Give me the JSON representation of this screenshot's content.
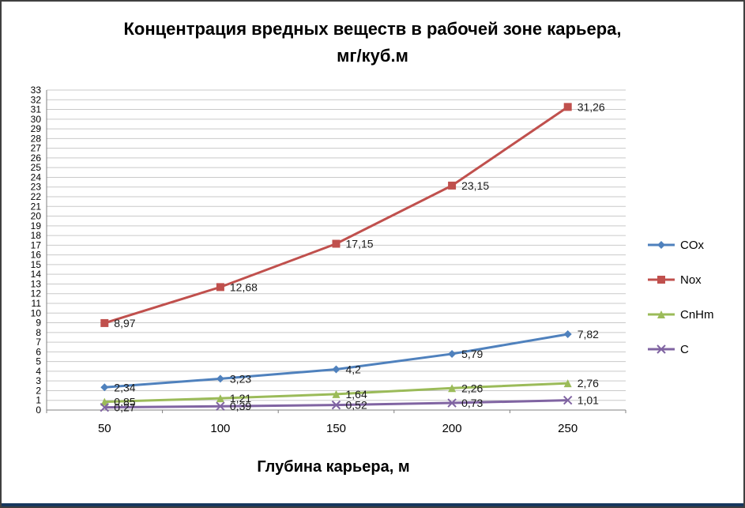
{
  "title_line1": "Концентрация вредных веществ в рабочей зоне карьера,",
  "title_line2": "мг/куб.м",
  "xlabel": "Глубина карьера, м",
  "chart_data": {
    "type": "line",
    "x": [
      50,
      100,
      150,
      200,
      250
    ],
    "series": [
      {
        "name": "COx",
        "color": "#4F81BD",
        "marker": "diamond",
        "values": [
          2.34,
          3.23,
          4.2,
          5.79,
          7.82
        ],
        "labels": [
          "2,34",
          "3,23",
          "4,2",
          "5,79",
          "7,82"
        ]
      },
      {
        "name": "Nox",
        "color": "#C0504D",
        "marker": "square",
        "values": [
          8.97,
          12.68,
          17.15,
          23.15,
          31.26
        ],
        "labels": [
          "8,97",
          "12,68",
          "17,15",
          "23,15",
          "31,26"
        ]
      },
      {
        "name": "CnHm",
        "color": "#9BBB59",
        "marker": "triangle",
        "values": [
          0.85,
          1.21,
          1.64,
          2.26,
          2.76
        ],
        "labels": [
          "0,85",
          "1,21",
          "1,64",
          "2,26",
          "2,76"
        ]
      },
      {
        "name": "C",
        "color": "#8064A2",
        "marker": "x",
        "values": [
          0.27,
          0.39,
          0.52,
          0.73,
          1.01
        ],
        "labels": [
          "0,27",
          "0,39",
          "0,52",
          "0,73",
          "1,01"
        ]
      }
    ],
    "ylim": [
      0,
      33
    ],
    "ytick_step": 1,
    "grid": true,
    "grid_color": "#c9c9c9",
    "axis_color": "#808080",
    "legend_position": "right"
  }
}
